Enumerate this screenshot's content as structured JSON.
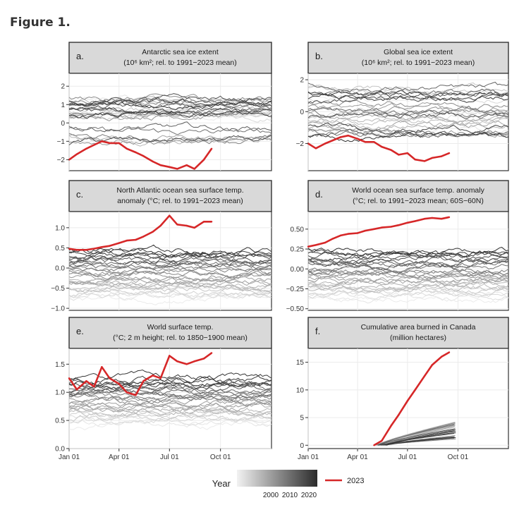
{
  "figure_title": "Figure 1.",
  "legend": {
    "title": "Year",
    "ticks": [
      "2000",
      "2010",
      "2020"
    ],
    "highlight_label": "2023",
    "highlight_color": "#d62728",
    "gradient_light": "#f2f2f2",
    "gradient_dark": "#2b2b2b"
  },
  "chart_data": [
    {
      "type": "line",
      "letter": "a.",
      "title_lines": [
        "Antarctic sea ice extent",
        "(10⁶ km²; rel. to 1991−2023 mean)"
      ],
      "ylim": [
        -2.6,
        2.7
      ],
      "yticks": [
        -2,
        -1,
        0,
        1,
        2
      ],
      "ytick_labels": [
        "−2",
        "−1",
        "0",
        "1",
        "2"
      ],
      "grid": true,
      "background_years": "1979–2022",
      "highlight_series": {
        "name": "2023",
        "x": [
          "Jan 01",
          "Jan 15",
          "Feb 01",
          "Feb 15",
          "Mar 01",
          "Mar 15",
          "Apr 01",
          "Apr 15",
          "May 01",
          "May 15",
          "Jun 01",
          "Jun 15",
          "Jul 01",
          "Jul 15",
          "Aug 01",
          "Aug 15",
          "Sep 01",
          "Sep 15"
        ],
        "values": [
          -2.0,
          -1.7,
          -1.4,
          -1.2,
          -1.0,
          -1.1,
          -1.1,
          -1.4,
          -1.6,
          -1.8,
          -2.1,
          -2.3,
          -2.4,
          -2.5,
          -2.3,
          -2.5,
          -2.0,
          -1.4
        ]
      }
    },
    {
      "type": "line",
      "letter": "b.",
      "title_lines": [
        "Global sea ice extent",
        "(10⁶ km²; rel. to 1991−2023 mean)"
      ],
      "ylim": [
        -3.7,
        2.4
      ],
      "yticks": [
        -2,
        0,
        2
      ],
      "ytick_labels": [
        "−2",
        "0",
        "2"
      ],
      "grid": true,
      "background_years": "1979–2022",
      "highlight_series": {
        "name": "2023",
        "x": [
          "Jan 01",
          "Jan 15",
          "Feb 01",
          "Feb 15",
          "Mar 01",
          "Mar 15",
          "Apr 01",
          "Apr 15",
          "May 01",
          "May 15",
          "Jun 01",
          "Jun 15",
          "Jul 01",
          "Jul 15",
          "Aug 01",
          "Aug 15",
          "Sep 01",
          "Sep 15"
        ],
        "values": [
          -2.0,
          -2.3,
          -2.0,
          -1.8,
          -1.6,
          -1.5,
          -1.7,
          -1.9,
          -1.9,
          -2.2,
          -2.4,
          -2.7,
          -2.6,
          -3.0,
          -3.1,
          -2.9,
          -2.8,
          -2.6
        ]
      }
    },
    {
      "type": "line",
      "letter": "c.",
      "title_lines": [
        "North Atlantic ocean sea surface temp.",
        "anomaly (°C; rel. to 1991−2023 mean)"
      ],
      "ylim": [
        -1.05,
        1.4
      ],
      "yticks": [
        -1.0,
        -0.5,
        0.0,
        0.5,
        1.0
      ],
      "ytick_labels": [
        "−1.0",
        "−0.5",
        "0.0",
        "0.5",
        "1.0"
      ],
      "grid": true,
      "background_years": "1981–2022",
      "highlight_series": {
        "name": "2023",
        "x": [
          "Jan 01",
          "Jan 15",
          "Feb 01",
          "Feb 15",
          "Mar 01",
          "Mar 15",
          "Apr 01",
          "Apr 15",
          "May 01",
          "May 15",
          "Jun 01",
          "Jun 15",
          "Jul 01",
          "Jul 15",
          "Aug 01",
          "Aug 15",
          "Sep 01",
          "Sep 15"
        ],
        "values": [
          0.48,
          0.45,
          0.45,
          0.48,
          0.52,
          0.55,
          0.62,
          0.68,
          0.7,
          0.78,
          0.9,
          1.05,
          1.3,
          1.08,
          1.05,
          1.0,
          1.15,
          1.15
        ]
      }
    },
    {
      "type": "line",
      "letter": "d.",
      "title_lines": [
        "World ocean sea surface temp. anomaly",
        "(°C; rel. to 1991−2023 mean; 60S−60N)"
      ],
      "ylim": [
        -0.52,
        0.72
      ],
      "yticks": [
        -0.5,
        -0.25,
        0.0,
        0.25,
        0.5
      ],
      "ytick_labels": [
        "−0.50",
        "−0.25",
        "0.00",
        "0.25",
        "0.50"
      ],
      "grid": true,
      "background_years": "1981–2022",
      "highlight_series": {
        "name": "2023",
        "x": [
          "Jan 01",
          "Jan 15",
          "Feb 01",
          "Feb 15",
          "Mar 01",
          "Mar 15",
          "Apr 01",
          "Apr 15",
          "May 01",
          "May 15",
          "Jun 01",
          "Jun 15",
          "Jul 01",
          "Jul 15",
          "Aug 01",
          "Aug 15",
          "Sep 01",
          "Sep 15"
        ],
        "values": [
          0.28,
          0.3,
          0.33,
          0.38,
          0.42,
          0.44,
          0.45,
          0.48,
          0.5,
          0.52,
          0.53,
          0.55,
          0.58,
          0.6,
          0.63,
          0.64,
          0.63,
          0.65
        ]
      }
    },
    {
      "type": "line",
      "letter": "e.",
      "title_lines": [
        "World surface temp.",
        "(°C; 2 m height; rel. to 1850−1900 mean)"
      ],
      "ylim": [
        0.0,
        1.78
      ],
      "yticks": [
        0.0,
        0.5,
        1.0,
        1.5
      ],
      "ytick_labels": [
        "0.0",
        "0.5",
        "1.0",
        "1.5"
      ],
      "grid": true,
      "background_years": "1940–2022",
      "highlight_series": {
        "name": "2023",
        "x": [
          "Jan 01",
          "Jan 15",
          "Feb 01",
          "Feb 15",
          "Mar 01",
          "Mar 15",
          "Apr 01",
          "Apr 15",
          "May 01",
          "May 15",
          "Jun 01",
          "Jun 15",
          "Jul 01",
          "Jul 15",
          "Aug 01",
          "Aug 15",
          "Sep 01",
          "Sep 15"
        ],
        "values": [
          1.25,
          1.05,
          1.2,
          1.1,
          1.45,
          1.25,
          1.15,
          1.0,
          0.95,
          1.2,
          1.3,
          1.25,
          1.65,
          1.55,
          1.5,
          1.55,
          1.6,
          1.7
        ]
      }
    },
    {
      "type": "line",
      "letter": "f.",
      "title_lines": [
        "Cumulative area burned in Canada",
        "(million hectares)"
      ],
      "ylim": [
        -0.6,
        17.5
      ],
      "yticks": [
        0,
        5,
        10,
        15
      ],
      "ytick_labels": [
        "0",
        "5",
        "10",
        "15"
      ],
      "grid": true,
      "background_years": "past years",
      "highlight_series": {
        "name": "2023",
        "x": [
          "May 01",
          "May 15",
          "Jun 01",
          "Jun 15",
          "Jul 01",
          "Jul 15",
          "Aug 01",
          "Aug 15",
          "Sep 01",
          "Sep 15"
        ],
        "values": [
          0.0,
          0.8,
          3.5,
          5.5,
          8.0,
          10.0,
          12.5,
          14.5,
          16.0,
          16.8
        ]
      }
    }
  ],
  "shared_axis": {
    "xtick_labels": [
      "Jan 01",
      "Apr 01",
      "Jul 01",
      "Oct 01"
    ],
    "xtick_doy": [
      1,
      91,
      182,
      274
    ],
    "xlim_doy": [
      1,
      366
    ]
  }
}
